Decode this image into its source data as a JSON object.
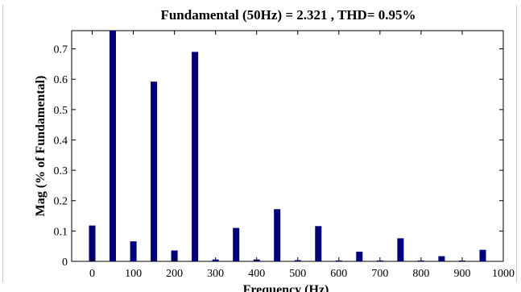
{
  "chart_data": {
    "type": "bar",
    "title": "Fundamental (50Hz) = 2.321 , THD= 0.95%",
    "xlabel": "Frequency (Hz)",
    "ylabel": "Mag (% of Fundamental)",
    "xlim": [
      -50,
      1000
    ],
    "ylim": [
      0,
      0.76
    ],
    "xticks": [
      0,
      100,
      200,
      300,
      400,
      500,
      600,
      700,
      800,
      900,
      1000
    ],
    "yticks": [
      0,
      0.1,
      0.2,
      0.3,
      0.4,
      0.5,
      0.6,
      0.7
    ],
    "grid": false,
    "bar_color": "#00007f",
    "series": [
      {
        "x": [
          0,
          50,
          100,
          150,
          200,
          250,
          300,
          350,
          400,
          450,
          500,
          550,
          600,
          650,
          700,
          750,
          800,
          850,
          900,
          950
        ],
        "values": [
          0.118,
          0.76,
          0.066,
          0.592,
          0.036,
          0.69,
          0.006,
          0.11,
          0.006,
          0.172,
          0.004,
          0.116,
          0.003,
          0.032,
          0.003,
          0.076,
          0.003,
          0.017,
          0.002,
          0.038
        ]
      }
    ]
  }
}
